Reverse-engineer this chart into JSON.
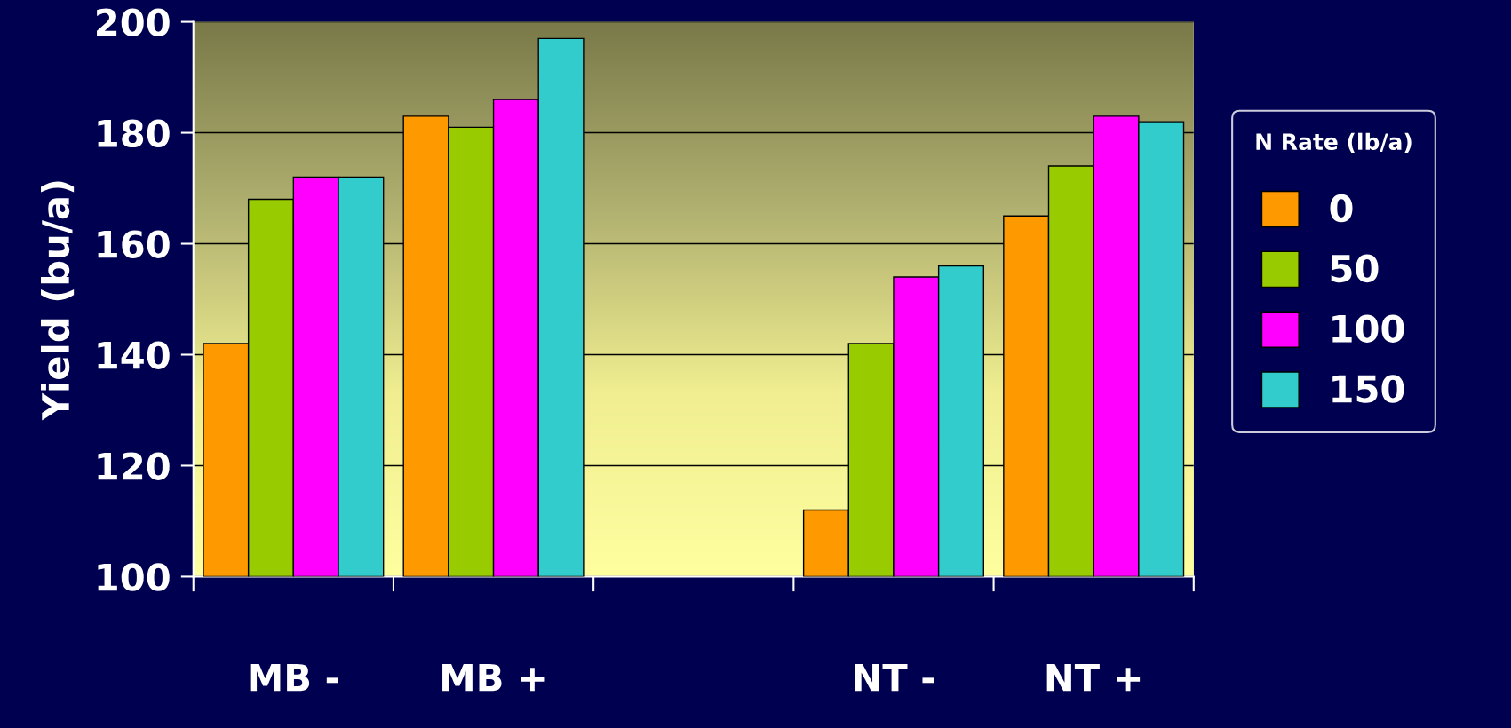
{
  "chart_data": {
    "type": "bar",
    "ylabel": "Yield (bu/a)",
    "legend_title": "N Rate (lb/a)",
    "categories": [
      "MB -",
      "MB +",
      null,
      "NT -",
      "NT +"
    ],
    "series": [
      {
        "name": "0",
        "color": "#ff9900",
        "values": [
          142,
          183,
          null,
          112,
          165
        ]
      },
      {
        "name": "50",
        "color": "#99cc00",
        "values": [
          168,
          181,
          null,
          142,
          174
        ]
      },
      {
        "name": "100",
        "color": "#ff00ff",
        "values": [
          172,
          186,
          null,
          154,
          183
        ]
      },
      {
        "name": "150",
        "color": "#33cccc",
        "values": [
          172,
          197,
          null,
          156,
          182
        ]
      }
    ],
    "ylim": [
      100,
      200
    ],
    "yticks": [
      100,
      120,
      140,
      160,
      180,
      200
    ],
    "grid": "y",
    "legend": "right"
  }
}
